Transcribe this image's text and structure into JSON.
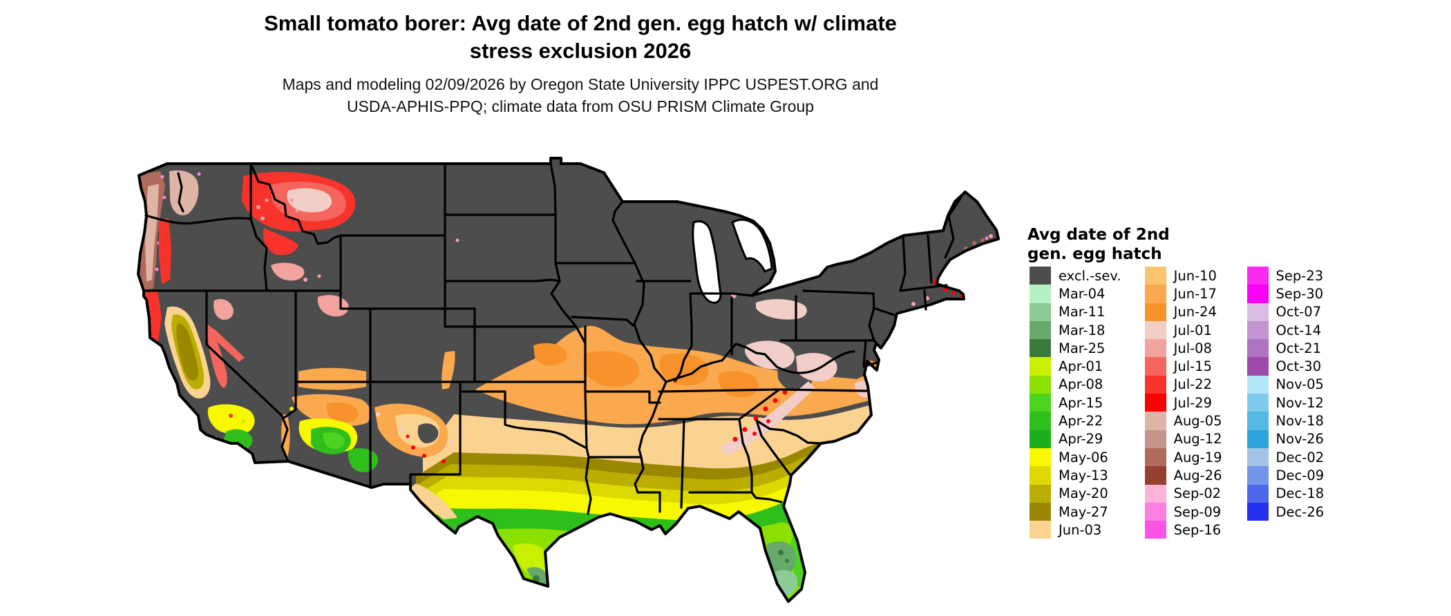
{
  "title": {
    "line1": "Small tomato borer: Avg date of 2nd gen. egg hatch w/ climate",
    "line2": "stress exclusion 2026"
  },
  "subtitle": {
    "line1": "Maps and modeling 02/09/2026 by Oregon State University IPPC USPEST.ORG and",
    "line2": "USDA-APHIS-PPQ; climate data from OSU PRISM Climate Group"
  },
  "legend": {
    "title_line1": "Avg date of 2nd",
    "title_line2": "gen. egg hatch",
    "columns": [
      [
        {
          "label": "excl.-sev.",
          "key": "excl"
        },
        {
          "label": "Mar-04",
          "key": "mar04"
        },
        {
          "label": "Mar-11",
          "key": "mar11"
        },
        {
          "label": "Mar-18",
          "key": "mar18"
        },
        {
          "label": "Mar-25",
          "key": "mar25"
        },
        {
          "label": "Apr-01",
          "key": "apr01"
        },
        {
          "label": "Apr-08",
          "key": "apr08"
        },
        {
          "label": "Apr-15",
          "key": "apr15"
        },
        {
          "label": "Apr-22",
          "key": "apr22"
        },
        {
          "label": "Apr-29",
          "key": "apr29"
        },
        {
          "label": "May-06",
          "key": "may06"
        },
        {
          "label": "May-13",
          "key": "may13"
        },
        {
          "label": "May-20",
          "key": "may20"
        },
        {
          "label": "May-27",
          "key": "may27"
        },
        {
          "label": "Jun-03",
          "key": "jun03"
        }
      ],
      [
        {
          "label": "Jun-10",
          "key": "jun10"
        },
        {
          "label": "Jun-17",
          "key": "jun17"
        },
        {
          "label": "Jun-24",
          "key": "jun24"
        },
        {
          "label": "Jul-01",
          "key": "jul01"
        },
        {
          "label": "Jul-08",
          "key": "jul08"
        },
        {
          "label": "Jul-15",
          "key": "jul15"
        },
        {
          "label": "Jul-22",
          "key": "jul22"
        },
        {
          "label": "Jul-29",
          "key": "jul29"
        },
        {
          "label": "Aug-05",
          "key": "aug05"
        },
        {
          "label": "Aug-12",
          "key": "aug12"
        },
        {
          "label": "Aug-19",
          "key": "aug19"
        },
        {
          "label": "Aug-26",
          "key": "aug26"
        },
        {
          "label": "Sep-02",
          "key": "sep02"
        },
        {
          "label": "Sep-09",
          "key": "sep09"
        },
        {
          "label": "Sep-16",
          "key": "sep16"
        }
      ],
      [
        {
          "label": "Sep-23",
          "key": "sep23"
        },
        {
          "label": "Sep-30",
          "key": "sep30"
        },
        {
          "label": "Oct-07",
          "key": "oct07"
        },
        {
          "label": "Oct-14",
          "key": "oct14"
        },
        {
          "label": "Oct-21",
          "key": "oct21"
        },
        {
          "label": "Oct-30",
          "key": "oct30"
        },
        {
          "label": "Nov-05",
          "key": "nov05"
        },
        {
          "label": "Nov-12",
          "key": "nov12"
        },
        {
          "label": "Nov-18",
          "key": "nov18"
        },
        {
          "label": "Nov-26",
          "key": "nov26"
        },
        {
          "label": "Dec-02",
          "key": "dec02"
        },
        {
          "label": "Dec-09",
          "key": "dec09"
        },
        {
          "label": "Dec-18",
          "key": "dec18"
        },
        {
          "label": "Dec-26",
          "key": "dec26"
        }
      ]
    ]
  },
  "map": {
    "background": "#FFFFFF",
    "border_color": "#000000",
    "water": "#FFFFFF",
    "palette": {
      "excl": "#4D4D4D",
      "mar04": "#B3F0C4",
      "mar11": "#8CCB95",
      "mar18": "#66A96B",
      "mar25": "#3B7A3F",
      "apr01": "#C8F000",
      "apr08": "#8CE000",
      "apr15": "#4CD41F",
      "apr22": "#2FBF1B",
      "apr29": "#1CAF1C",
      "may06": "#F8F800",
      "may13": "#DCD900",
      "may20": "#BCAE00",
      "may27": "#9A8700",
      "jun03": "#FAD391",
      "jun10": "#FBC471",
      "jun17": "#FAA94E",
      "jun24": "#F8932C",
      "jul01": "#F2CEC8",
      "jul08": "#F2A39E",
      "jul15": "#F4655E",
      "jul22": "#F8332C",
      "jul29": "#FA0000",
      "aug05": "#DFB3A6",
      "aug12": "#C6948A",
      "aug19": "#B06B5C",
      "aug26": "#96402F",
      "sep02": "#FBB3DC",
      "sep09": "#FB80E4",
      "sep16": "#FA54E4",
      "sep23": "#FA2BEE",
      "sep30": "#FA00FA",
      "oct07": "#D9BCE4",
      "oct14": "#C493D1",
      "oct21": "#B073C2",
      "oct30": "#9C4BAD",
      "nov05": "#B4E6FA",
      "nov12": "#7FCBEC",
      "nov18": "#53B8E4",
      "nov26": "#2DA3DC",
      "dec02": "#A2C3E6",
      "dec09": "#7395E8",
      "dec18": "#4D68ED",
      "dec26": "#2430F0"
    }
  }
}
